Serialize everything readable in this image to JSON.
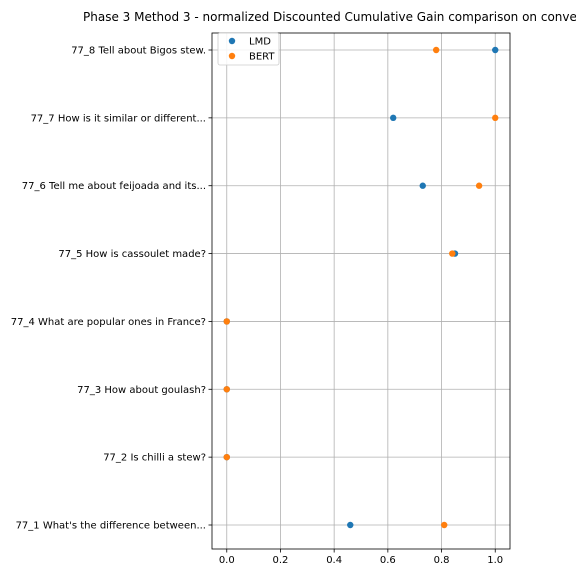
{
  "chart_data": {
    "type": "scatter",
    "title": "Phase 3 Method 3 - normalized Discounted Cumulative Gain comparison on conve",
    "xlabel": "",
    "ylabel": "",
    "xlim": [
      -0.055,
      1.055
    ],
    "x_ticks": [
      "0.0",
      "0.2",
      "0.4",
      "0.6",
      "0.8",
      "1.0"
    ],
    "x_tick_values": [
      0.0,
      0.2,
      0.4,
      0.6,
      0.8,
      1.0
    ],
    "categories": [
      "77_1 What's the difference between...",
      "77_2 Is chilli a stew?",
      "77_3 How about goulash?",
      "77_4 What are popular ones in France?",
      "77_5 How is cassoulet made?",
      "77_6 Tell me about feijoada and its...",
      "77_7 How is it similar or different...",
      "77_8 Tell about Bigos stew."
    ],
    "grid": true,
    "legend_position": "top-left",
    "series": [
      {
        "name": "LMD",
        "color": "#1f77b4",
        "values": [
          0.46,
          0.0,
          0.0,
          0.0,
          0.85,
          0.73,
          0.62,
          1.0
        ]
      },
      {
        "name": "BERT",
        "color": "#ff7f0e",
        "values": [
          0.81,
          0.0,
          0.0,
          0.0,
          0.84,
          0.94,
          1.0,
          0.78
        ]
      }
    ]
  }
}
